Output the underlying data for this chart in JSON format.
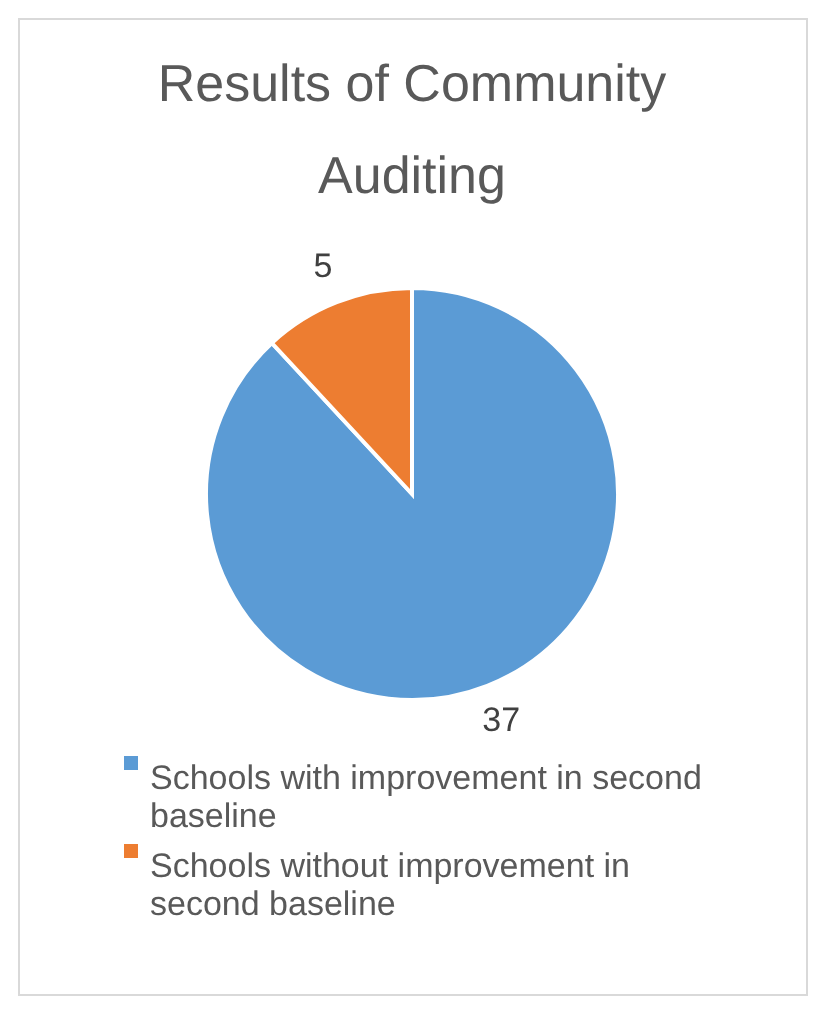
{
  "chart_data": {
    "type": "pie",
    "title": "Results of Community Auditing",
    "categories": [
      "Schools with improvement in second baseline",
      "Schools without improvement in second baseline"
    ],
    "values": [
      37,
      5
    ],
    "colors": [
      "#5b9bd5",
      "#ed7d31"
    ],
    "data_labels": true,
    "legend": "bottom"
  }
}
